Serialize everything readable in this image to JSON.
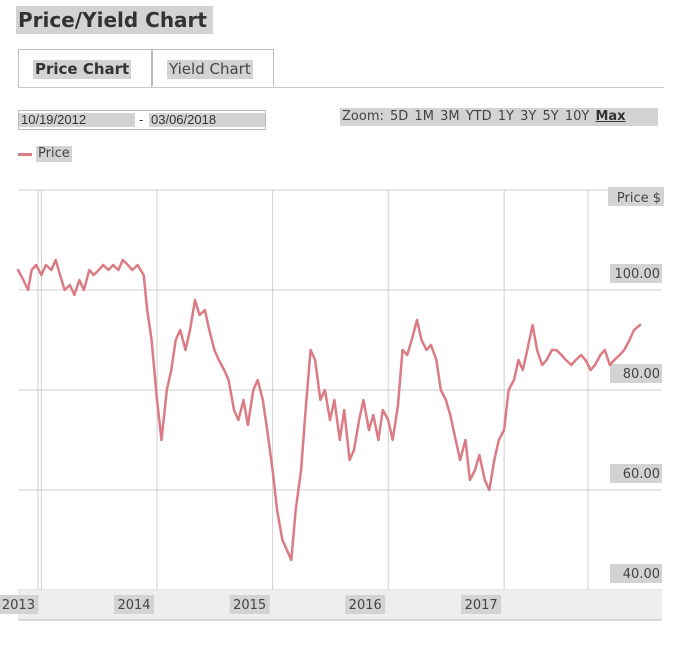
{
  "page": {
    "title": "Price/Yield Chart"
  },
  "tabs": [
    {
      "label": "Price Chart",
      "active": true
    },
    {
      "label": "Yield Chart",
      "active": false
    }
  ],
  "date_range": {
    "from": "10/19/2012",
    "separator": "-",
    "to": "03/06/2018"
  },
  "zoom": {
    "label": "Zoom:",
    "options": [
      "5D",
      "1M",
      "3M",
      "YTD",
      "1Y",
      "3Y",
      "5Y",
      "10Y",
      "Max"
    ],
    "active": "Max"
  },
  "colors": {
    "series": "#db7b84",
    "grid": "#d0d0d0",
    "label_bg": "#d3d3d3",
    "axis_band": "#eeeeee"
  },
  "chart_data": {
    "type": "line",
    "title": "",
    "xlabel": "",
    "ylabel": "Price $",
    "grid": true,
    "legend": "top-left",
    "xlim": [
      "2012-10-19",
      "2018-03-06"
    ],
    "ylim": [
      40,
      120
    ],
    "y_ticks": [
      "40.00",
      "60.00",
      "80.00",
      "100.00"
    ],
    "x_ticks": [
      "2013",
      "2014",
      "2015",
      "2016",
      "2017"
    ],
    "series": [
      {
        "name": "Price",
        "color": "#db7b84",
        "x": [
          "2012-10-19",
          "2012-11-05",
          "2012-11-20",
          "2012-12-01",
          "2012-12-15",
          "2013-01-01",
          "2013-01-15",
          "2013-02-01",
          "2013-02-15",
          "2013-03-01",
          "2013-03-15",
          "2013-04-01",
          "2013-04-15",
          "2013-05-01",
          "2013-05-15",
          "2013-06-01",
          "2013-06-15",
          "2013-07-01",
          "2013-07-15",
          "2013-08-01",
          "2013-08-15",
          "2013-09-01",
          "2013-09-15",
          "2013-10-01",
          "2013-10-15",
          "2013-11-01",
          "2013-11-10",
          "2013-11-20",
          "2013-12-01",
          "2013-12-15",
          "2014-01-01",
          "2014-01-15",
          "2014-02-01",
          "2014-02-15",
          "2014-03-01",
          "2014-03-15",
          "2014-04-01",
          "2014-04-15",
          "2014-05-01",
          "2014-05-15",
          "2014-06-01",
          "2014-06-15",
          "2014-07-01",
          "2014-07-15",
          "2014-08-01",
          "2014-08-15",
          "2014-09-01",
          "2014-09-15",
          "2014-10-01",
          "2014-10-15",
          "2014-11-01",
          "2014-11-15",
          "2014-12-01",
          "2014-12-15",
          "2015-01-01",
          "2015-01-15",
          "2015-02-01",
          "2015-02-15",
          "2015-03-01",
          "2015-03-15",
          "2015-04-01",
          "2015-04-15",
          "2015-05-01",
          "2015-05-15",
          "2015-06-01",
          "2015-06-15",
          "2015-07-01",
          "2015-07-15",
          "2015-08-01",
          "2015-08-15",
          "2015-09-01",
          "2015-09-15",
          "2015-10-01",
          "2015-10-15",
          "2015-11-01",
          "2015-11-15",
          "2015-12-01",
          "2015-12-15",
          "2016-01-01",
          "2016-01-15",
          "2016-02-01",
          "2016-02-15",
          "2016-03-01",
          "2016-03-15",
          "2016-04-01",
          "2016-04-15",
          "2016-05-01",
          "2016-05-15",
          "2016-06-01",
          "2016-06-15",
          "2016-07-01",
          "2016-07-15",
          "2016-08-01",
          "2016-08-15",
          "2016-09-01",
          "2016-09-15",
          "2016-10-01",
          "2016-10-15",
          "2016-11-01",
          "2016-11-15",
          "2016-12-01",
          "2016-12-15",
          "2017-01-01",
          "2017-01-15",
          "2017-02-01",
          "2017-02-15",
          "2017-03-01",
          "2017-03-15",
          "2017-04-01",
          "2017-04-15",
          "2017-05-01",
          "2017-05-15",
          "2017-06-01",
          "2017-06-15",
          "2017-07-01",
          "2017-07-15",
          "2017-08-01",
          "2017-08-15",
          "2017-09-01",
          "2017-09-15",
          "2017-10-01",
          "2017-10-15",
          "2017-11-01",
          "2017-11-15",
          "2017-12-01",
          "2017-12-15",
          "2018-01-01",
          "2018-01-15",
          "2018-02-01",
          "2018-02-15",
          "2018-03-06"
        ],
        "y": [
          104,
          102,
          100,
          104,
          105,
          103,
          105,
          104,
          106,
          103,
          100,
          101,
          99,
          102,
          100,
          104,
          103,
          104,
          105,
          104,
          105,
          104,
          106,
          105,
          104,
          105,
          104,
          103,
          96,
          90,
          78,
          70,
          80,
          84,
          90,
          92,
          88,
          92,
          98,
          95,
          96,
          92,
          88,
          86,
          84,
          82,
          76,
          74,
          78,
          73,
          80,
          82,
          78,
          72,
          64,
          56,
          50,
          48,
          46,
          56,
          64,
          76,
          88,
          86,
          78,
          80,
          74,
          78,
          70,
          76,
          66,
          68,
          74,
          78,
          72,
          75,
          70,
          76,
          74,
          70,
          77,
          88,
          87,
          90,
          94,
          90,
          88,
          89,
          86,
          80,
          78,
          75,
          70,
          66,
          70,
          62,
          64,
          67,
          62,
          60,
          66,
          70,
          72,
          80,
          82,
          86,
          84,
          88,
          93,
          88,
          85,
          86,
          88,
          88,
          87,
          86,
          85,
          86,
          87,
          86,
          84,
          85,
          87,
          88,
          85,
          86,
          87,
          88,
          90,
          92,
          93
        ]
      }
    ]
  }
}
